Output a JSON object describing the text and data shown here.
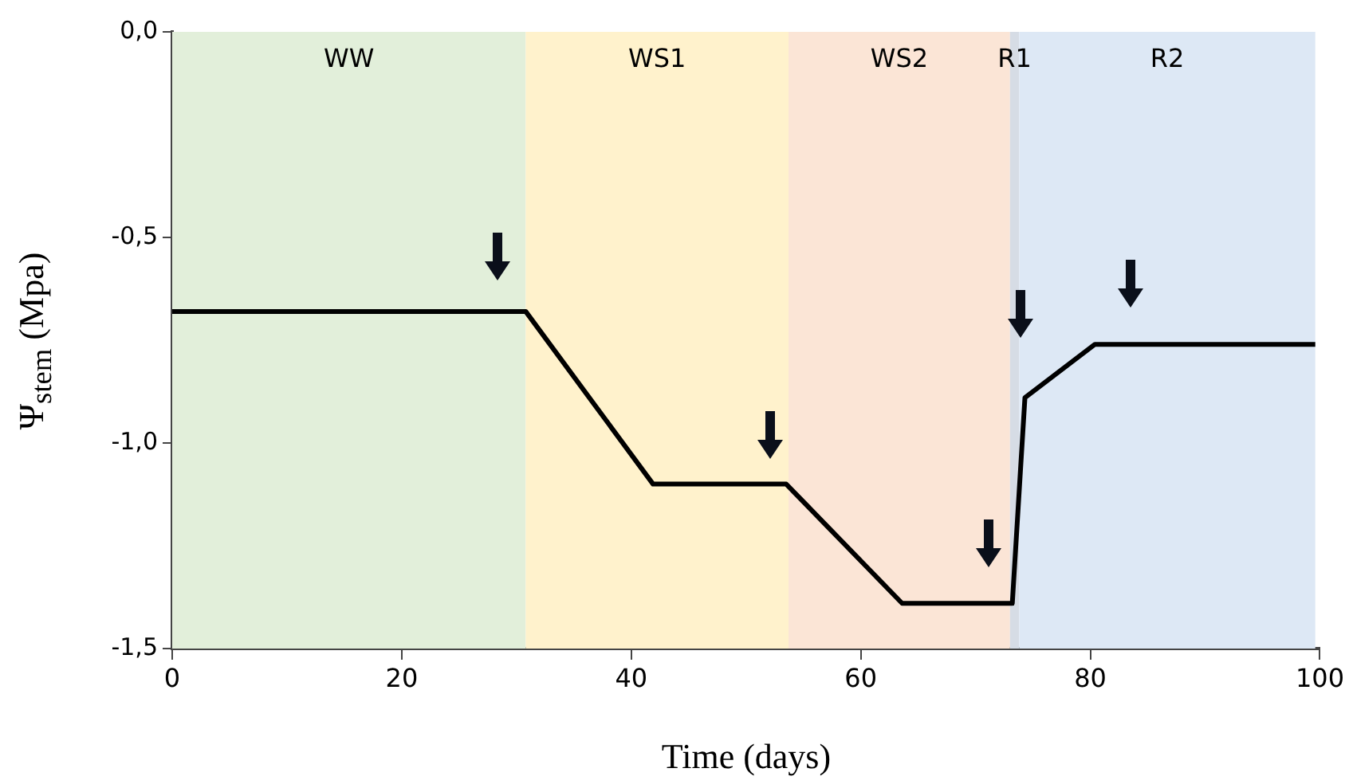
{
  "chart_data": {
    "type": "line",
    "xlabel": "Time (days)",
    "ylabel": "Ψ$_{stem}$ (Mpa)",
    "x": [
      0,
      30.8,
      41.9,
      53.5,
      63.6,
      73.2,
      74.3,
      80.4,
      99.6
    ],
    "series": [
      {
        "color": "#000000",
        "values": [
          -0.68,
          -0.68,
          -1.1,
          -1.1,
          -1.39,
          -1.39,
          -0.89,
          -0.76,
          -0.76
        ]
      }
    ],
    "xlim": [
      0,
      100
    ],
    "xticks": [
      0,
      20,
      40,
      60,
      80,
      100
    ],
    "ylim": [
      -1.5,
      0
    ],
    "yticks": [
      {
        "value": -1.5,
        "label": "-1,5"
      },
      {
        "value": -1,
        "label": "-1,0"
      },
      {
        "value": -0.5,
        "label": "-0,5"
      },
      {
        "value": 0,
        "label": "0,0"
      }
    ],
    "bands": [
      {
        "axis": "x",
        "from": 0,
        "to": 30.8,
        "label": "WW",
        "color": "#e2efda"
      },
      {
        "axis": "x",
        "from": 30.8,
        "to": 53.7,
        "label": "WS1",
        "color": "#fff2cc"
      },
      {
        "axis": "x",
        "from": 53.7,
        "to": 73,
        "label": "WS2",
        "color": "#fbe5d6"
      },
      {
        "axis": "x",
        "from": 73,
        "to": 73.8,
        "label": "R1",
        "color": "#d6dce5"
      },
      {
        "axis": "x",
        "from": 73.8,
        "to": 99.6,
        "label": "R2",
        "color": "#dde8f5"
      }
    ],
    "grid": false,
    "marker": "none",
    "line_style": "solid"
  }
}
